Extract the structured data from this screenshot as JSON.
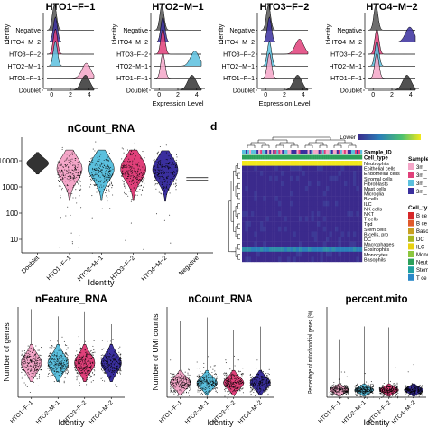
{
  "colors": {
    "Doublet": "#333333",
    "HTO1-F-1": "#f4a6c8",
    "HTO2-M-1": "#5bc0de",
    "HTO3-F-2": "#e0407a",
    "HTO4-M-2": "#3a2f9e",
    "Negative": "#555555",
    "heat_low": "#3b2a8c",
    "heat_high": "#f3e91b"
  },
  "chart_data": [
    {
      "type": "ridgeline",
      "panel": "a",
      "title": "HTO1−F−1",
      "xlabel": "",
      "ylabel": "Identity",
      "rows": [
        "Negative",
        "HTO4−M−2",
        "HTO3−F−2",
        "HTO2−M−1",
        "HTO1−F−1",
        "Doublet"
      ],
      "xticks": [
        0,
        2,
        4
      ],
      "peaks": [
        0.3,
        0.4,
        0.4,
        0.4,
        3.7,
        3.6
      ]
    },
    {
      "type": "ridgeline",
      "panel": "a",
      "title": "HTO2−M−1",
      "xlabel": "Expression Level",
      "ylabel": "Identity",
      "rows": [
        "Negative",
        "HTO4−M−2",
        "HTO3−F−2",
        "HTO2−M−1",
        "HTO1−F−1",
        "Doublet"
      ],
      "xticks": [
        0,
        2,
        4
      ],
      "peaks": [
        0.3,
        0.4,
        0.4,
        3.8,
        0.4,
        3.5
      ]
    },
    {
      "type": "ridgeline",
      "panel": "a",
      "title": "HTO3−F−2",
      "xlabel": "Expression Level",
      "ylabel": "Identity",
      "rows": [
        "Negative",
        "HTO4−M−2",
        "HTO3−F−2",
        "HTO2−M−1",
        "HTO1−F−1",
        "Doublet"
      ],
      "xticks": [
        0,
        2,
        4
      ],
      "peaks": [
        0.3,
        0.4,
        3.6,
        0.4,
        0.4,
        3.4
      ]
    },
    {
      "type": "ridgeline",
      "panel": "a",
      "title": "HTO4−M−2",
      "xlabel": "",
      "ylabel": "Identity",
      "rows": [
        "Negative",
        "HTO4−M−2",
        "HTO3−F−2",
        "HTO2−M−1",
        "HTO1−F−1",
        "Doublet"
      ],
      "xticks": [
        0,
        2,
        4
      ],
      "peaks": [
        0.3,
        3.9,
        0.4,
        0.4,
        0.4,
        3.6
      ]
    },
    {
      "type": "violin",
      "title": "nCount_RNA",
      "xlabel": "Identity",
      "ylabel": "",
      "yscale": "log",
      "yticks": [
        10,
        100,
        1000,
        10000
      ],
      "yticklabels": [
        "10",
        "100",
        "1000",
        "10000"
      ],
      "categories": [
        "Doublet",
        "HTO1−F−1",
        "HTO2−M−1",
        "HTO3−F−2",
        "HTO4−M−2",
        "Negative"
      ],
      "medians": [
        8000,
        4500,
        4500,
        4500,
        4200,
        2000
      ]
    },
    {
      "type": "heatmap",
      "panel": "d",
      "legend_lower": "Lower",
      "annotation_rows": [
        "Sample_ID",
        "Cell_type"
      ],
      "rows": [
        "Neutrophils",
        "Epithelial cells",
        "Endothelial cells",
        "Stromal cells",
        "Fibroblasts",
        "Mast cells",
        "Microglia",
        "B cells",
        "ILC",
        "NK cells",
        "NKT",
        "T cells",
        "Tgd",
        "Stem cells",
        "B cells, pro",
        "DC",
        "Macrophages",
        "Eosinophils",
        "Monocytes",
        "Basophils"
      ],
      "high_rows": [
        "Neutrophils",
        "Eosinophils"
      ],
      "legend_sample_title": "Sample",
      "legend_sample_items": [
        "3m_",
        "3m_",
        "3m_",
        "3m_"
      ],
      "legend_sample_colors": [
        "#f4a6c8",
        "#e0407a",
        "#5bc0de",
        "#3a2f9e"
      ],
      "legend_celltype_title": "Cell_ty",
      "legend_celltype_items": [
        "B ce",
        "B ce",
        "Baso",
        "DC",
        "ILC",
        "Mono",
        "Neut",
        "Stem",
        "T ce"
      ],
      "legend_celltype_colors": [
        "#d62728",
        "#e05a2b",
        "#c8a020",
        "#a8b820",
        "#e8d010",
        "#8cc63e",
        "#2ca05a",
        "#1fa0a0",
        "#2a88c8"
      ]
    },
    {
      "type": "violin",
      "title": "nFeature_RNA",
      "xlabel": "Identity",
      "ylabel": "Number of genes",
      "categories": [
        "HTO1−F−1",
        "HTO2−M−1",
        "HTO3−F−2",
        "HTO4−M−2"
      ],
      "medians": [
        2000,
        2000,
        2000,
        2000
      ]
    },
    {
      "type": "violin",
      "title": "nCount_RNA",
      "xlabel": "Identity",
      "ylabel": "Number of UMI counts",
      "categories": [
        "HTO1−F−1",
        "HTO2−M−1",
        "HTO3−F−2",
        "HTO4−M−2"
      ],
      "medians": [
        6000,
        6000,
        6000,
        6000
      ]
    },
    {
      "type": "violin",
      "title": "percent.mito",
      "xlabel": "Identity",
      "ylabel": "Percentage of mitochondrial genes (%)",
      "categories": [
        "HTO1−F−1",
        "HTO2−M−1",
        "HTO3−F−2",
        "HTO4−M−2"
      ],
      "medians": [
        2,
        2,
        2,
        2
      ]
    }
  ]
}
